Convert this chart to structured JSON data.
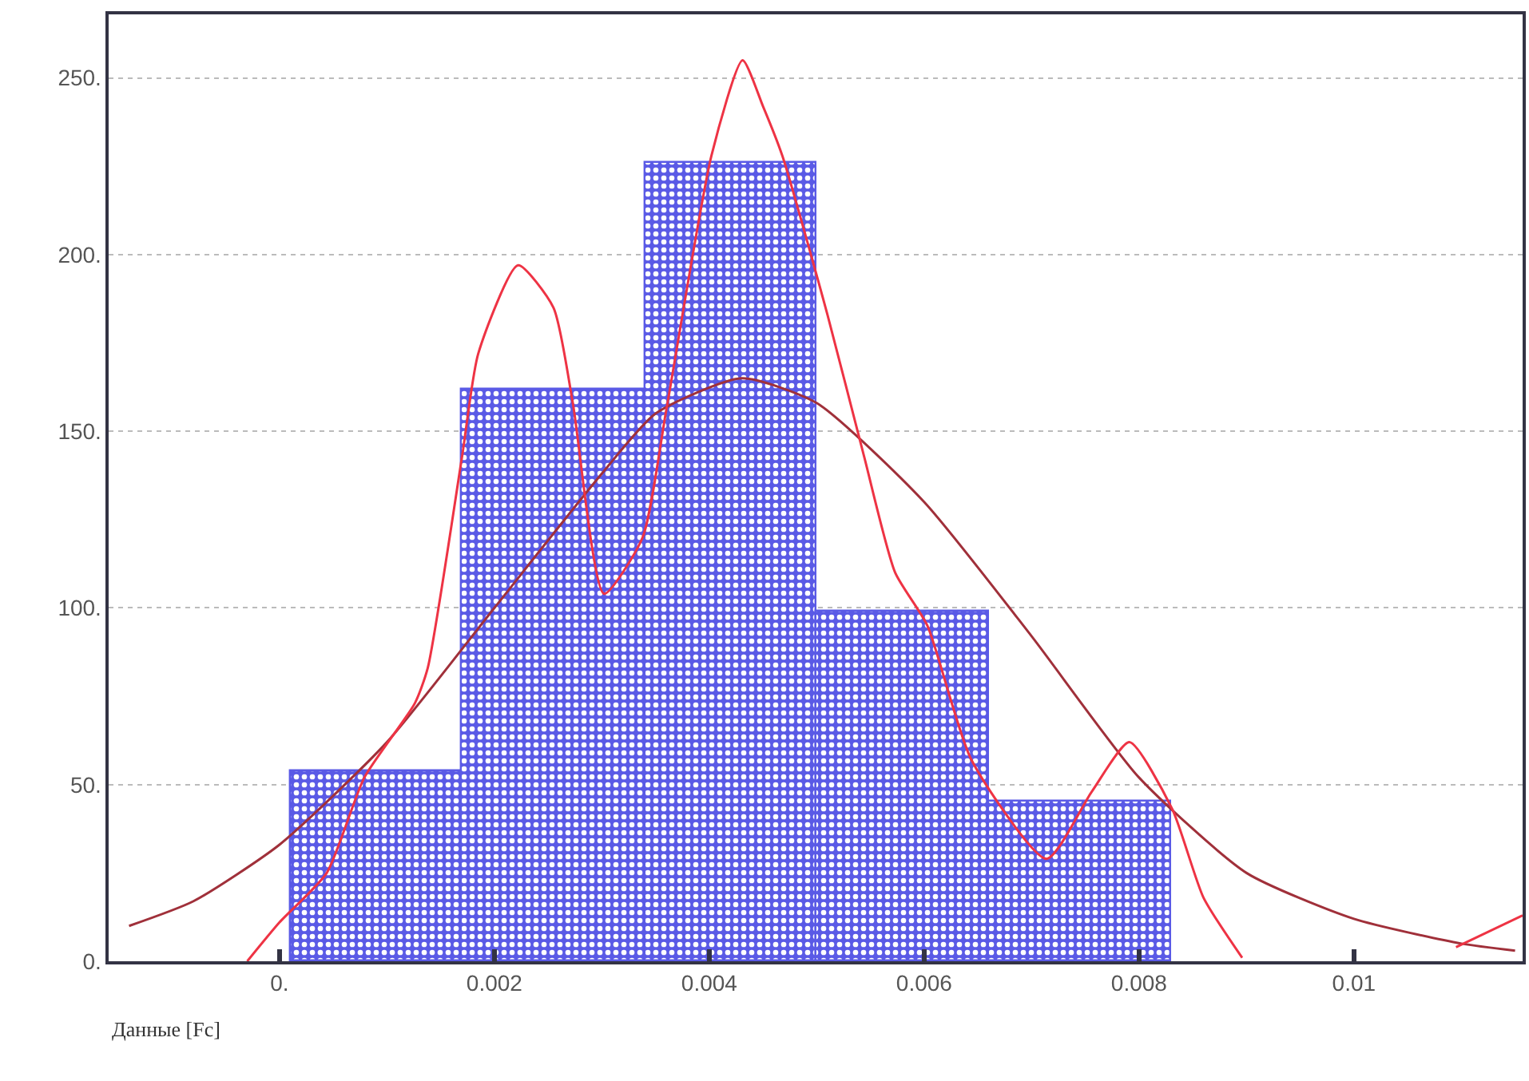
{
  "chart_data": {
    "type": "histogram",
    "xlabel": "Данные [Fc]",
    "bins": [
      0.0001,
      0.0017,
      0.0034,
      0.005,
      0.0066,
      0.0083
    ],
    "values": [
      54,
      162,
      226,
      99,
      45
    ],
    "color": "#5a5ae6",
    "series": [
      {
        "type": "line",
        "color": "#a0303a",
        "x": [
          -0.0014,
          -0.0008,
          0,
          0.001,
          0.002,
          0.003,
          0.0035,
          0.0043,
          0.005,
          0.006,
          0.007,
          0.008,
          0.009,
          0.01,
          0.011,
          0.0115
        ],
        "values": [
          10,
          17,
          33,
          62,
          100,
          138,
          155,
          165,
          158,
          130,
          92,
          52,
          25,
          12,
          5,
          3
        ]
      },
      {
        "type": "line",
        "color": "#ee3344",
        "x": [
          -0.0003,
          0,
          0.00044,
          0.00079,
          0.00126,
          0.00138,
          0.0017,
          0.00185,
          0.00222,
          0.00255,
          0.00273,
          0.00302,
          0.00338,
          0.0036,
          0.00402,
          0.00431,
          0.0045,
          0.00468,
          0.0051,
          0.00544,
          0.00573,
          0.00603,
          0.00644,
          0.00714,
          0.00756,
          0.00791,
          0.00831,
          0.0086,
          0.00896,
          0.01,
          0.01095,
          0.01157
        ],
        "values": [
          0,
          11,
          25,
          52,
          73,
          83,
          143,
          172,
          197,
          185,
          158,
          104,
          120,
          156,
          228,
          255,
          242,
          228,
          183,
          143,
          110,
          95,
          57,
          29,
          48,
          62,
          43,
          18,
          1,
          null,
          4,
          13
        ]
      }
    ],
    "xlim": [
      -0.00159,
      0.01157
    ],
    "ylim": [
      0,
      268
    ],
    "xticks": [
      {
        "value": 0,
        "label": "0."
      },
      0.002,
      0.004,
      0.006,
      0.008,
      0.01
    ],
    "yticks": [
      {
        "value": 0,
        "label": "0."
      },
      {
        "value": 50,
        "label": "50."
      },
      {
        "value": 100,
        "label": "100."
      },
      {
        "value": 150,
        "label": "150."
      },
      {
        "value": 200,
        "label": "200."
      },
      {
        "value": 250,
        "label": "250."
      }
    ],
    "grid": "y"
  }
}
